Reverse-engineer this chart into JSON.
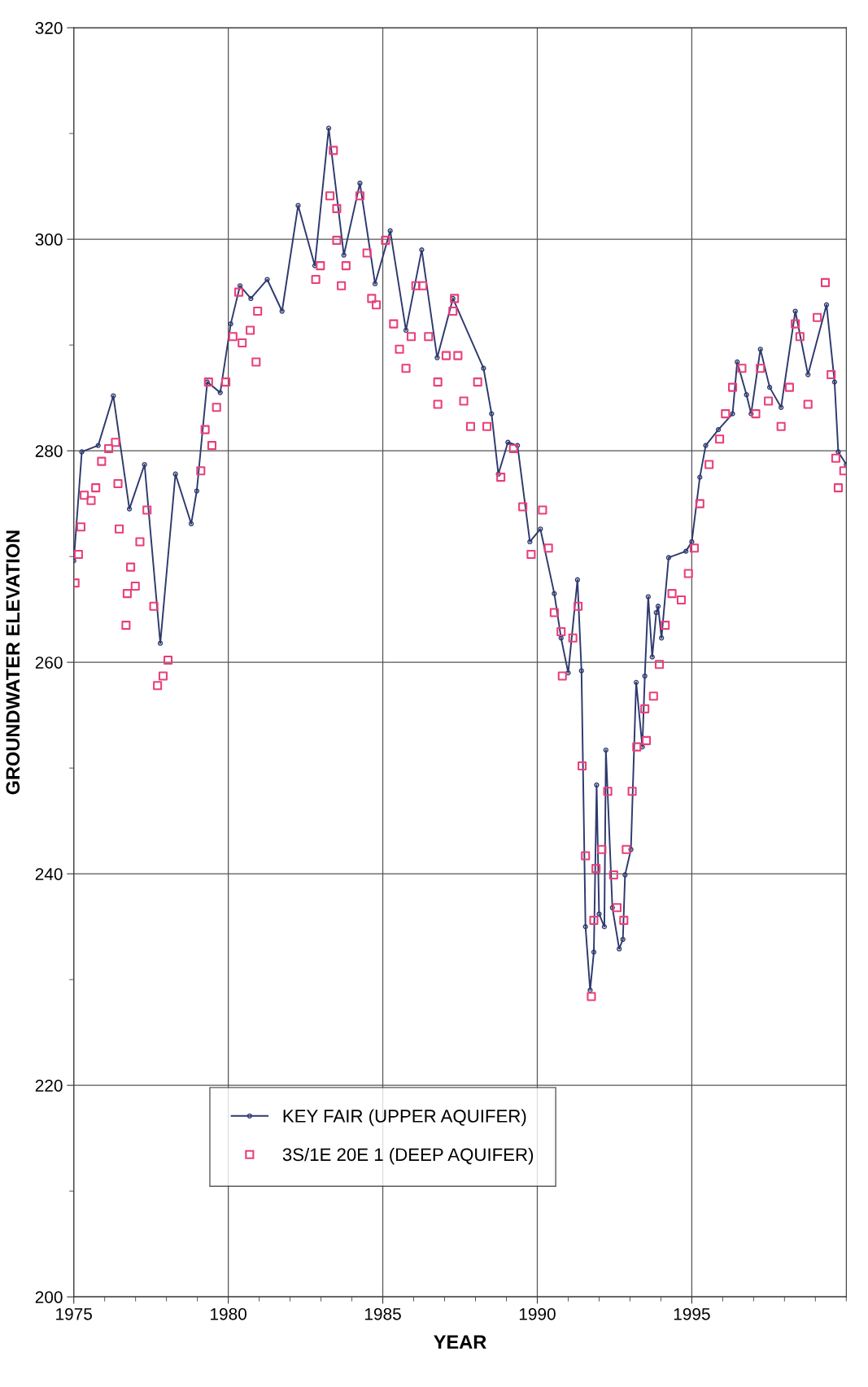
{
  "chart_data": {
    "type": "line",
    "xlabel": "YEAR",
    "ylabel": "GROUNDWATER ELEVATION",
    "xlim": [
      1975,
      2000
    ],
    "xticks": [
      1975,
      1980,
      1985,
      1990,
      1995
    ],
    "ylim": [
      200,
      320
    ],
    "yticks": [
      200,
      220,
      240,
      260,
      280,
      300,
      320
    ],
    "grid": true,
    "legend": "bottom",
    "series": [
      {
        "name": "KEY FAIR (UPPER AQUIFER)",
        "color": "#2e3a6e",
        "marker": "circle",
        "x": [
          1975.0,
          1975.26,
          1975.79,
          1976.28,
          1976.8,
          1977.29,
          1977.8,
          1978.29,
          1978.8,
          1978.98,
          1979.32,
          1979.74,
          1980.08,
          1980.38,
          1980.73,
          1981.26,
          1981.74,
          1982.26,
          1982.8,
          1983.25,
          1983.74,
          1984.26,
          1984.75,
          1985.24,
          1985.75,
          1986.26,
          1986.76,
          1987.27,
          1988.26,
          1988.52,
          1988.74,
          1989.05,
          1989.36,
          1989.76,
          1990.1,
          1990.55,
          1990.77,
          1991.0,
          1991.3,
          1991.43,
          1991.56,
          1991.71,
          1991.83,
          1991.92,
          1992.0,
          1992.17,
          1992.22,
          1992.43,
          1992.65,
          1992.77,
          1992.84,
          1993.03,
          1993.2,
          1993.4,
          1993.48,
          1993.59,
          1993.72,
          1993.85,
          1993.91,
          1994.02,
          1994.25,
          1994.81,
          1995.0,
          1995.26,
          1995.45,
          1995.86,
          1996.32,
          1996.47,
          1996.77,
          1996.92,
          1997.22,
          1997.52,
          1997.89,
          1998.35,
          1998.76,
          1999.36,
          1999.62,
          1999.74,
          2000.0
        ],
        "values": [
          269.6,
          279.9,
          280.5,
          285.2,
          274.5,
          278.7,
          261.8,
          277.8,
          273.1,
          276.2,
          286.5,
          285.5,
          292,
          295.6,
          294.4,
          296.2,
          293.2,
          303.2,
          297.5,
          310.5,
          298.5,
          305.3,
          295.8,
          300.8,
          291.4,
          299,
          288.8,
          294.4,
          287.8,
          283.5,
          277.8,
          280.8,
          280.5,
          271.4,
          272.6,
          266.5,
          262.3,
          259,
          267.8,
          259.2,
          235,
          229,
          232.6,
          248.4,
          236.2,
          235,
          251.7,
          236.8,
          232.9,
          233.8,
          239.9,
          242.3,
          258.1,
          252,
          258.7,
          266.2,
          260.5,
          264.7,
          265.3,
          262.3,
          269.9,
          270.5,
          271.4,
          277.5,
          280.5,
          282,
          283.5,
          288.4,
          285.3,
          283.5,
          289.6,
          286,
          284.1,
          293.2,
          287.2,
          293.8,
          286.5,
          279.9,
          278.7
        ]
      },
      {
        "name": "3S/1E 20E 1 (DEEP AQUIFER)",
        "type": "scatter",
        "color": "#e8407a",
        "marker": "square",
        "x": [
          1975.04,
          1975.15,
          1975.23,
          1975.34,
          1975.56,
          1975.71,
          1975.9,
          1976.13,
          1976.35,
          1976.43,
          1976.47,
          1976.69,
          1976.73,
          1976.84,
          1976.99,
          1977.14,
          1977.37,
          1977.59,
          1977.71,
          1977.89,
          1978.05,
          1979.11,
          1979.25,
          1979.36,
          1979.47,
          1979.62,
          1979.92,
          1980.15,
          1980.34,
          1980.45,
          1980.71,
          1980.9,
          1980.95,
          1982.83,
          1982.98,
          1983.29,
          1983.4,
          1983.51,
          1983.51,
          1983.66,
          1983.81,
          1984.26,
          1984.49,
          1984.64,
          1984.79,
          1985.09,
          1985.35,
          1985.54,
          1985.75,
          1985.92,
          1986.07,
          1986.29,
          1986.48,
          1986.78,
          1986.78,
          1987.05,
          1987.27,
          1987.32,
          1987.43,
          1987.62,
          1987.84,
          1988.07,
          1988.37,
          1988.82,
          1989.23,
          1989.53,
          1989.8,
          1990.17,
          1990.36,
          1990.55,
          1990.77,
          1990.81,
          1991.15,
          1991.32,
          1991.45,
          1991.56,
          1991.75,
          1991.83,
          1991.9,
          1992.09,
          1992.28,
          1992.47,
          1992.58,
          1992.8,
          1992.88,
          1993.07,
          1993.22,
          1993.48,
          1993.53,
          1993.76,
          1993.95,
          1994.14,
          1994.36,
          1994.66,
          1994.89,
          1995.08,
          1995.26,
          1995.56,
          1995.9,
          1996.09,
          1996.32,
          1996.62,
          1997.07,
          1997.22,
          1997.48,
          1997.89,
          1998.16,
          1998.35,
          1998.5,
          1998.76,
          1999.06,
          1999.32,
          1999.51,
          1999.66,
          1999.74,
          1999.92
        ],
        "values": [
          267.5,
          270.2,
          272.8,
          275.8,
          275.3,
          276.5,
          279,
          280.2,
          280.8,
          276.9,
          272.6,
          263.5,
          266.5,
          269,
          267.2,
          271.4,
          274.4,
          265.3,
          257.8,
          258.7,
          260.2,
          278.1,
          282,
          286.5,
          280.5,
          284.1,
          286.5,
          290.8,
          295,
          290.2,
          291.4,
          288.4,
          293.2,
          296.2,
          297.5,
          304.1,
          308.4,
          302.9,
          299.9,
          295.6,
          297.5,
          304.1,
          298.7,
          294.4,
          293.8,
          299.9,
          292,
          289.6,
          287.8,
          290.8,
          295.6,
          295.6,
          290.8,
          286.5,
          284.4,
          289,
          293.2,
          294.4,
          289,
          284.7,
          282.3,
          286.5,
          282.3,
          277.5,
          280.2,
          274.7,
          270.2,
          274.4,
          270.8,
          264.7,
          262.9,
          258.7,
          262.3,
          265.3,
          250.2,
          241.7,
          228.4,
          235.6,
          240.5,
          242.3,
          247.8,
          239.9,
          236.8,
          235.6,
          242.3,
          247.8,
          252,
          255.6,
          252.6,
          256.8,
          259.8,
          263.5,
          266.5,
          265.9,
          268.4,
          270.8,
          275,
          278.7,
          281.1,
          283.5,
          286,
          287.8,
          283.5,
          287.8,
          284.7,
          282.3,
          286,
          292,
          290.8,
          284.4,
          292.6,
          295.9,
          287.2,
          279.3,
          276.5,
          278.1
        ]
      }
    ]
  }
}
